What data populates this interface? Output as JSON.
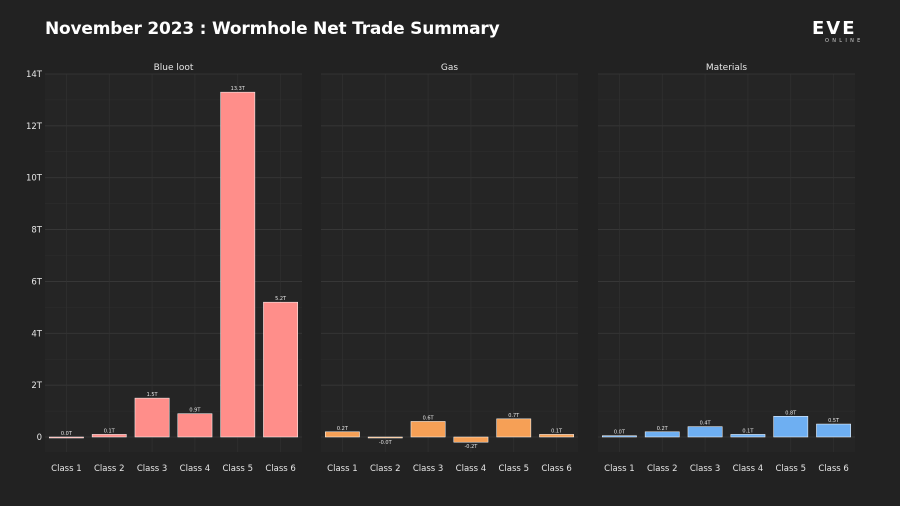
{
  "header": {
    "title": "November 2023 : Wormhole Net Trade Summary",
    "logo_main": "EVE",
    "logo_sub": "ONLINE"
  },
  "chart_data": {
    "type": "bar",
    "categories": [
      "Class 1",
      "Class 2",
      "Class 3",
      "Class 4",
      "Class 5",
      "Class 6"
    ],
    "y_ticks": [
      "0",
      "2T",
      "4T",
      "6T",
      "8T",
      "10T",
      "12T",
      "14T"
    ],
    "ylim": [
      -0.3,
      14
    ],
    "grid": true,
    "facets": [
      {
        "name": "Blue loot",
        "color": "#ff8e8a",
        "values": [
          0.0,
          0.1,
          1.5,
          0.9,
          13.3,
          5.2
        ],
        "labels": [
          "0.0T",
          "0.1T",
          "1.5T",
          "0.9T",
          "13.3T",
          "5.2T"
        ]
      },
      {
        "name": "Gas",
        "color": "#f6a056",
        "values": [
          0.2,
          -0.02,
          0.6,
          -0.2,
          0.7,
          0.1
        ],
        "labels": [
          "0.2T",
          "-0.0T",
          "0.6T",
          "-0.2T",
          "0.7T",
          "0.1T"
        ]
      },
      {
        "name": "Materials",
        "color": "#6eaff2",
        "values": [
          0.05,
          0.2,
          0.4,
          0.1,
          0.8,
          0.5
        ],
        "labels": [
          "0.0T",
          "0.2T",
          "0.4T",
          "0.1T",
          "0.8T",
          "0.5T"
        ]
      }
    ]
  }
}
